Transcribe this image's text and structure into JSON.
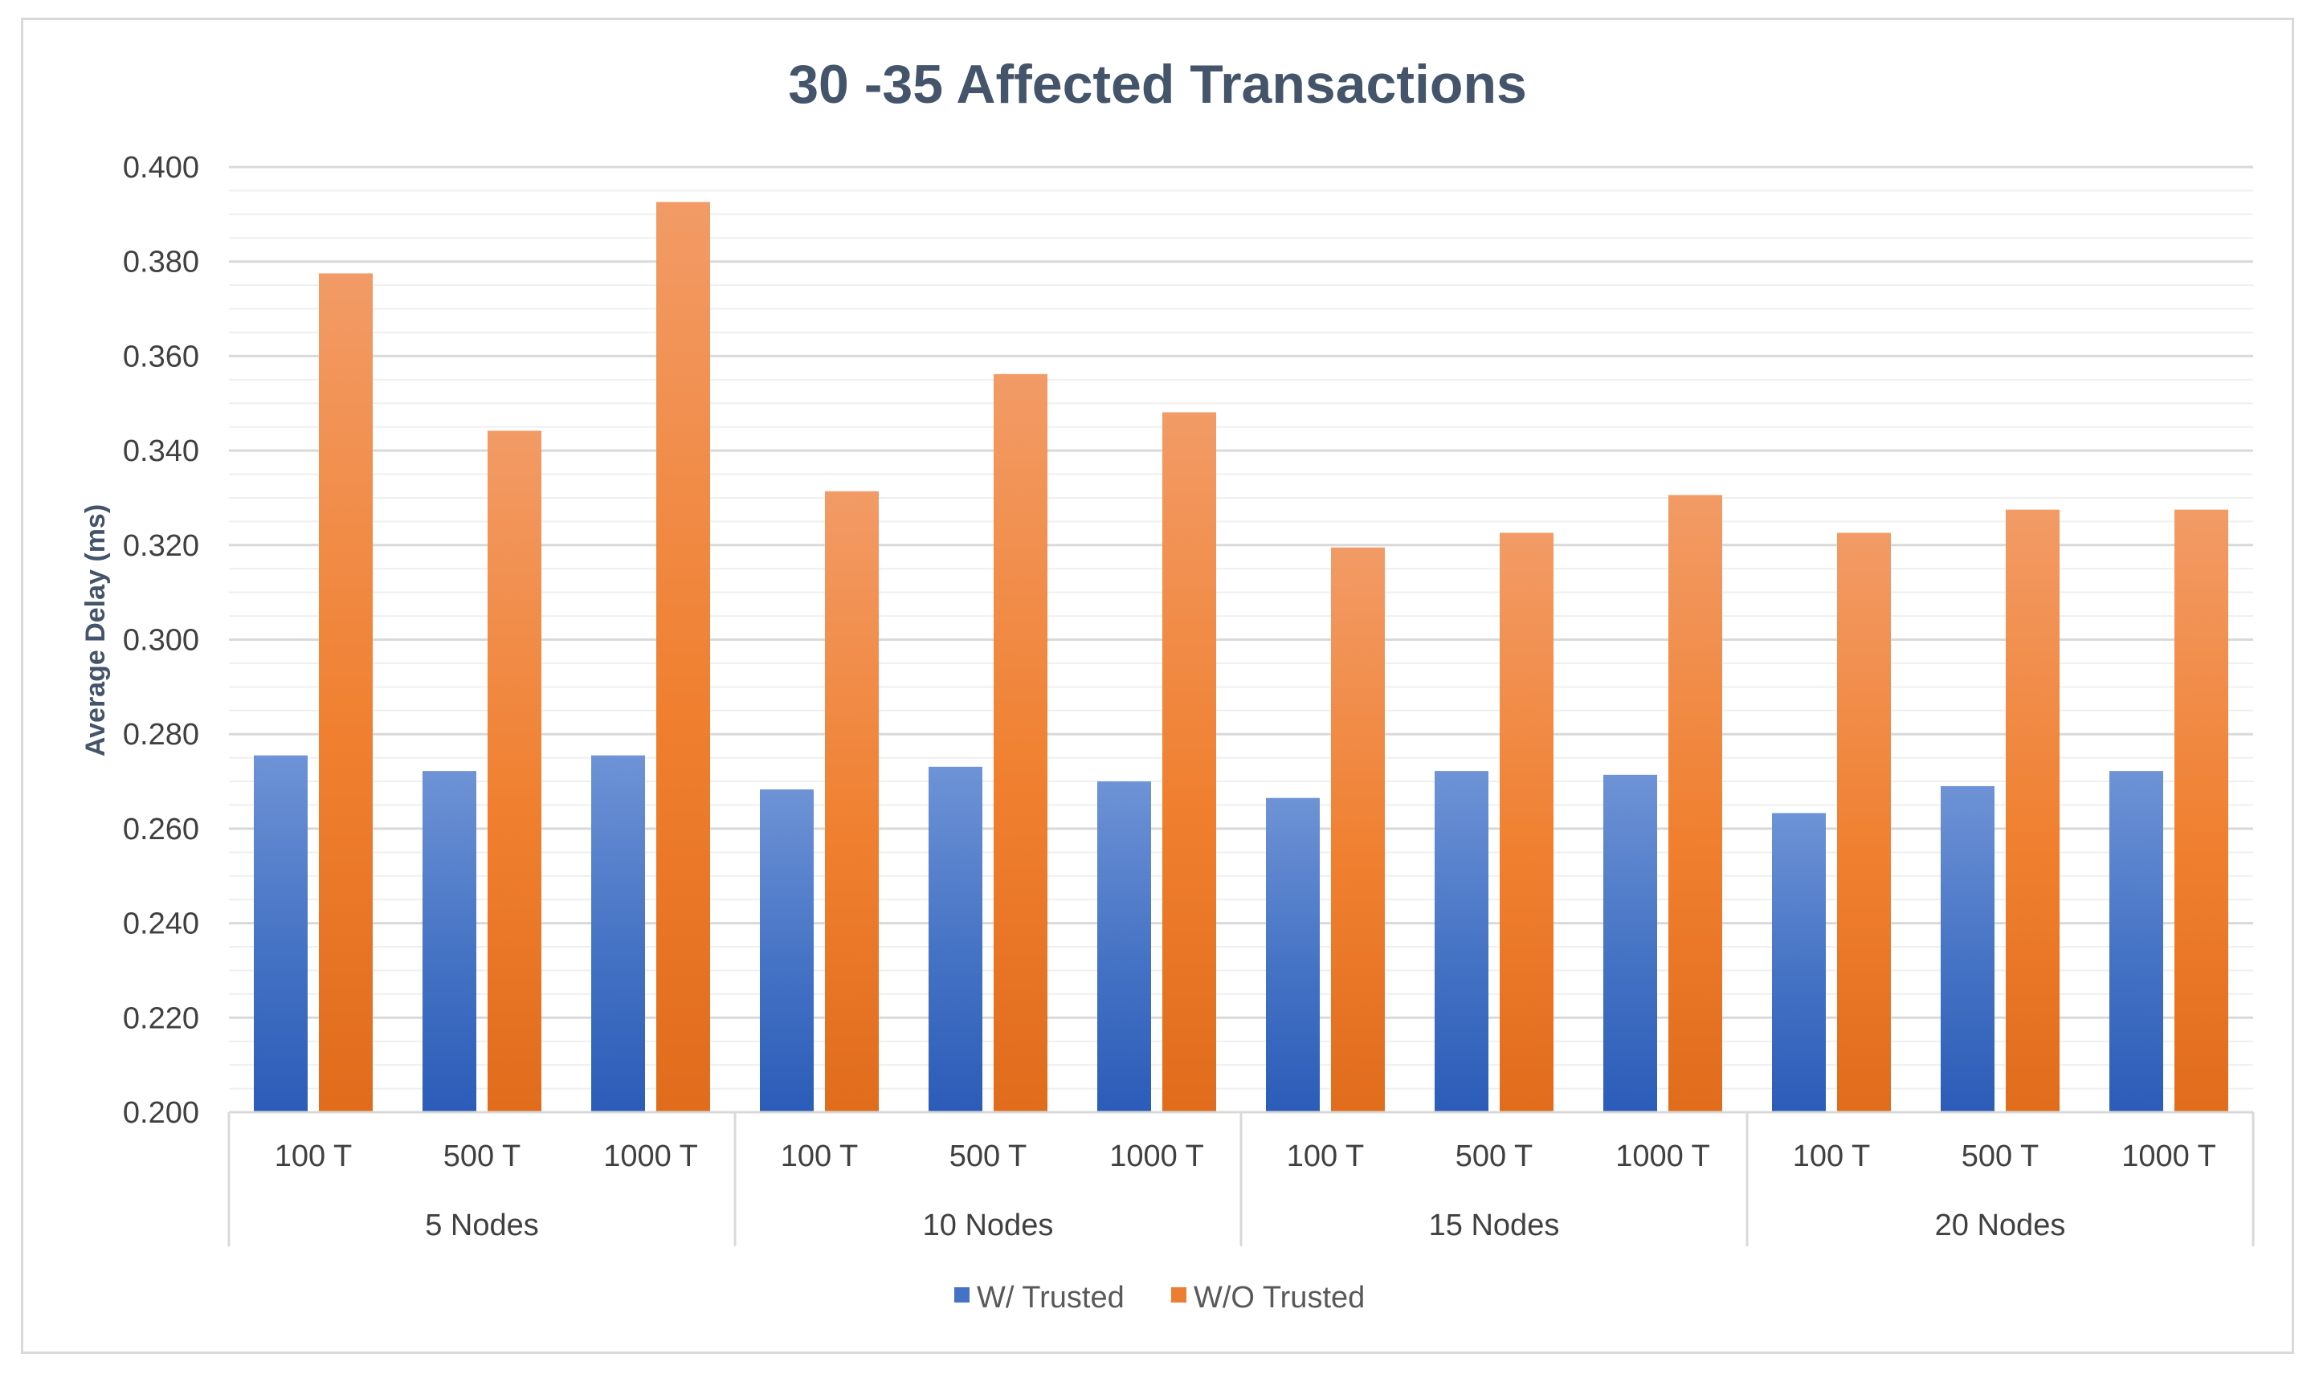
{
  "chart_data": {
    "type": "bar",
    "title": "30 -35 Affected Transactions",
    "xlabel": "",
    "ylabel": "Average Delay (ms)",
    "ylim": [
      0.2,
      0.4
    ],
    "ytick_step": 0.02,
    "minor_grid_step": 0.005,
    "ytick_labels": [
      "0.200",
      "0.220",
      "0.240",
      "0.260",
      "0.280",
      "0.300",
      "0.320",
      "0.340",
      "0.360",
      "0.380",
      "0.400"
    ],
    "groups": [
      "5 Nodes",
      "10 Nodes",
      "15 Nodes",
      "20 Nodes"
    ],
    "subcategories": [
      "100 T",
      "500 T",
      "1000 T"
    ],
    "categories": [
      "100 T",
      "500 T",
      "1000 T",
      "100 T",
      "500 T",
      "1000 T",
      "100 T",
      "500 T",
      "1000 T",
      "100 T",
      "500 T",
      "1000 T"
    ],
    "series": [
      {
        "name": "W/ Trusted",
        "color": "#4472c4",
        "values": [
          0.2755,
          0.2722,
          0.2755,
          0.2683,
          0.2731,
          0.27,
          0.2665,
          0.2722,
          0.2714,
          0.2633,
          0.269,
          0.2722
        ]
      },
      {
        "name": "W/O Trusted",
        "color": "#ed7d31",
        "values": [
          0.3775,
          0.3442,
          0.3926,
          0.3314,
          0.3562,
          0.3481,
          0.3195,
          0.3226,
          0.3306,
          0.3226,
          0.3275,
          0.3275
        ]
      }
    ],
    "legend_position": "bottom",
    "grid": true
  }
}
